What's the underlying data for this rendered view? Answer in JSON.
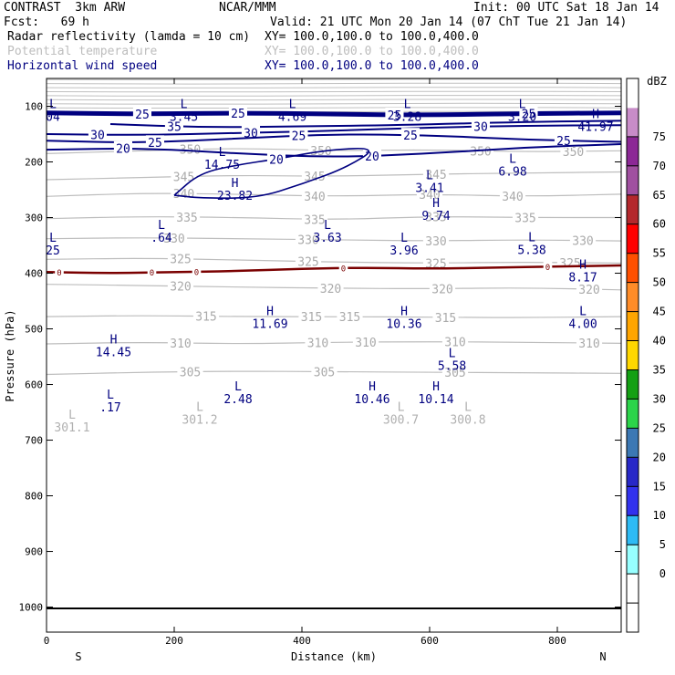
{
  "header": {
    "model": "CONTRAST  3km ARW",
    "institution": "NCAR/MMM",
    "init": "Init: 00 UTC Sat 18 Jan 14",
    "fcst": "Fcst:   69 h",
    "valid": "Valid: 21 UTC Mon 20 Jan 14 (07 ChT Tue 21 Jan 14)",
    "fields": [
      {
        "name": "Radar reflectivity (lamda = 10 cm)",
        "xy": "XY= 100.0,100.0 to 100.0,400.0",
        "color": "#000000"
      },
      {
        "name": "Potential temperature",
        "xy": "XY= 100.0,100.0 to 100.0,400.0",
        "color": "#bdbdbd"
      },
      {
        "name": "Horizontal wind speed",
        "xy": "XY= 100.0,100.0 to 100.0,400.0",
        "color": "#000080"
      }
    ]
  },
  "chart_data": {
    "type": "contour",
    "xlabel": "Distance (km)",
    "ylabel": "Pressure (hPa)",
    "xlim": [
      0,
      900
    ],
    "ylim": [
      50,
      1045
    ],
    "x_ticks": [
      0,
      200,
      400,
      600,
      800
    ],
    "y_ticks": [
      100,
      200,
      300,
      400,
      500,
      600,
      700,
      800,
      900,
      1000
    ],
    "x_end_labels": {
      "left": "S",
      "right": "N"
    },
    "theta_contours": [
      {
        "label": "350",
        "points": [
          [
            0,
            185
          ],
          [
            150,
            180
          ],
          [
            300,
            175
          ],
          [
            450,
            180
          ],
          [
            600,
            178
          ],
          [
            750,
            182
          ],
          [
            900,
            180
          ]
        ],
        "label_x": [
          225,
          430,
          680,
          825
        ]
      },
      {
        "label": "345",
        "points": [
          [
            0,
            232
          ],
          [
            150,
            228
          ],
          [
            300,
            224
          ],
          [
            450,
            226
          ],
          [
            600,
            222
          ],
          [
            750,
            220
          ],
          [
            900,
            218
          ]
        ],
        "label_x": [
          215,
          420,
          610
        ]
      },
      {
        "label": "340",
        "points": [
          [
            0,
            262
          ],
          [
            150,
            256
          ],
          [
            300,
            258
          ],
          [
            450,
            262
          ],
          [
            600,
            258
          ],
          [
            750,
            262
          ],
          [
            900,
            258
          ]
        ],
        "label_x": [
          215,
          420,
          600,
          730
        ]
      },
      {
        "label": "335",
        "points": [
          [
            0,
            302
          ],
          [
            150,
            298
          ],
          [
            300,
            300
          ],
          [
            450,
            304
          ],
          [
            600,
            298
          ],
          [
            750,
            300
          ],
          [
            900,
            300
          ]
        ],
        "label_x": [
          220,
          420,
          610,
          750
        ]
      },
      {
        "label": "330",
        "points": [
          [
            0,
            338
          ],
          [
            150,
            336
          ],
          [
            300,
            338
          ],
          [
            450,
            340
          ],
          [
            600,
            342
          ],
          [
            750,
            340
          ],
          [
            900,
            342
          ]
        ],
        "label_x": [
          200,
          410,
          610,
          840
        ]
      },
      {
        "label": "325",
        "points": [
          [
            0,
            375
          ],
          [
            150,
            373
          ],
          [
            300,
            376
          ],
          [
            450,
            380
          ],
          [
            600,
            382
          ],
          [
            750,
            380
          ],
          [
            900,
            382
          ]
        ],
        "label_x": [
          210,
          410,
          610,
          820
        ]
      },
      {
        "label": "320",
        "points": [
          [
            0,
            420
          ],
          [
            150,
            422
          ],
          [
            300,
            425
          ],
          [
            450,
            427
          ],
          [
            600,
            428
          ],
          [
            750,
            426
          ],
          [
            900,
            430
          ]
        ],
        "label_x": [
          210,
          445,
          620,
          850
        ]
      },
      {
        "label": "315",
        "points": [
          [
            0,
            478
          ],
          [
            150,
            476
          ],
          [
            300,
            478
          ],
          [
            450,
            478
          ],
          [
            600,
            479
          ],
          [
            750,
            480
          ],
          [
            900,
            478
          ]
        ],
        "label_x": [
          250,
          415,
          475,
          625
        ]
      },
      {
        "label": "310",
        "points": [
          [
            0,
            527
          ],
          [
            150,
            524
          ],
          [
            300,
            527
          ],
          [
            450,
            524
          ],
          [
            600,
            523
          ],
          [
            750,
            524
          ],
          [
            900,
            526
          ]
        ],
        "label_x": [
          210,
          425,
          500,
          640,
          850
        ]
      },
      {
        "label": "305",
        "points": [
          [
            0,
            582
          ],
          [
            150,
            578
          ],
          [
            300,
            576
          ],
          [
            450,
            577
          ],
          [
            600,
            578
          ],
          [
            750,
            579
          ],
          [
            900,
            580
          ]
        ],
        "label_x": [
          225,
          435,
          640
        ]
      }
    ],
    "wind_contours": [
      {
        "label": "25",
        "points": [
          [
            0,
            112
          ],
          [
            150,
            114
          ],
          [
            300,
            112
          ],
          [
            450,
            114
          ],
          [
            600,
            116
          ],
          [
            750,
            113
          ],
          [
            900,
            112
          ]
        ],
        "label_x": [
          150,
          300,
          545,
          755
        ]
      },
      {
        "label": "35",
        "points": [
          [
            100,
            132
          ],
          [
            250,
            138
          ],
          [
            400,
            136
          ],
          [
            550,
            134
          ],
          [
            750,
            128
          ],
          [
            900,
            126
          ]
        ],
        "label_x": [
          200
        ]
      },
      {
        "label": "30",
        "points": [
          [
            0,
            150
          ],
          [
            150,
            152
          ],
          [
            300,
            148
          ],
          [
            450,
            144
          ],
          [
            600,
            138
          ],
          [
            750,
            135
          ],
          [
            900,
            134
          ]
        ],
        "label_x": [
          80,
          320,
          680
        ]
      },
      {
        "label": "25",
        "points": [
          [
            0,
            162
          ],
          [
            150,
            166
          ],
          [
            300,
            158
          ],
          [
            450,
            150
          ],
          [
            600,
            152
          ],
          [
            750,
            160
          ],
          [
            900,
            164
          ]
        ],
        "label_x": [
          170,
          395,
          570,
          810
        ]
      },
      {
        "label": "20",
        "points": [
          [
            0,
            178
          ],
          [
            150,
            175
          ],
          [
            300,
            185
          ],
          [
            450,
            192
          ],
          [
            600,
            185
          ],
          [
            750,
            174
          ],
          [
            900,
            168
          ]
        ],
        "label_x": [
          120,
          510
        ]
      }
    ],
    "wind_cells": [
      {
        "label": "20",
        "points": [
          [
            200,
            260
          ],
          [
            240,
            220
          ],
          [
            300,
            205
          ],
          [
            360,
            195
          ],
          [
            440,
            178
          ],
          [
            520,
            174
          ],
          [
            470,
            210
          ],
          [
            400,
            240
          ],
          [
            330,
            265
          ],
          [
            240,
            265
          ],
          [
            200,
            260
          ]
        ],
        "label_x": [
          360
        ]
      }
    ],
    "top_bands": {
      "count": 9,
      "from": 52,
      "to": 110
    },
    "freezing_level": {
      "label": "0",
      "points": [
        [
          0,
          398
        ],
        [
          100,
          400
        ],
        [
          200,
          398
        ],
        [
          300,
          396
        ],
        [
          400,
          392
        ],
        [
          500,
          390
        ],
        [
          600,
          392
        ],
        [
          700,
          390
        ],
        [
          800,
          388
        ],
        [
          900,
          386
        ]
      ],
      "label_x": [
        20,
        165,
        235,
        465,
        785
      ]
    },
    "extrema": [
      {
        "kind": "L",
        "value": "04",
        "x": 10,
        "y": 110
      },
      {
        "kind": "L",
        "value": "3.45",
        "x": 215,
        "y": 110
      },
      {
        "kind": "L",
        "value": "4.69",
        "x": 385,
        "y": 110
      },
      {
        "kind": "L",
        "value": "3.28",
        "x": 565,
        "y": 110
      },
      {
        "kind": "L",
        "value": "3.20",
        "x": 745,
        "y": 110
      },
      {
        "kind": "H",
        "value": "41.97",
        "x": 860,
        "y": 128
      },
      {
        "kind": "L",
        "value": "14.75",
        "x": 275,
        "y": 196
      },
      {
        "kind": "L",
        "value": "6.98",
        "x": 730,
        "y": 208
      },
      {
        "kind": "L",
        "value": "3.41",
        "x": 600,
        "y": 238
      },
      {
        "kind": "H",
        "value": "23.82",
        "x": 295,
        "y": 252
      },
      {
        "kind": "H",
        "value": "9.74",
        "x": 610,
        "y": 288
      },
      {
        "kind": "L",
        "value": ".64",
        "x": 180,
        "y": 327
      },
      {
        "kind": "L",
        "value": "3.63",
        "x": 440,
        "y": 327
      },
      {
        "kind": "L",
        "value": "3.96",
        "x": 560,
        "y": 350
      },
      {
        "kind": "L",
        "value": "5.38",
        "x": 760,
        "y": 349
      },
      {
        "kind": "L",
        "value": "25",
        "x": 10,
        "y": 350
      },
      {
        "kind": "H",
        "value": "8.17",
        "x": 840,
        "y": 398
      },
      {
        "kind": "H",
        "value": "11.69",
        "x": 350,
        "y": 482
      },
      {
        "kind": "H",
        "value": "10.36",
        "x": 560,
        "y": 482
      },
      {
        "kind": "L",
        "value": "4.00",
        "x": 840,
        "y": 482
      },
      {
        "kind": "H",
        "value": "14.45",
        "x": 105,
        "y": 533
      },
      {
        "kind": "L",
        "value": "5.58",
        "x": 635,
        "y": 557
      },
      {
        "kind": "L",
        "value": "2.48",
        "x": 300,
        "y": 617
      },
      {
        "kind": "H",
        "value": "10.46",
        "x": 510,
        "y": 617
      },
      {
        "kind": "H",
        "value": "10.14",
        "x": 610,
        "y": 617
      },
      {
        "kind": "L",
        "value": ".17",
        "x": 100,
        "y": 632
      },
      {
        "kind": "L",
        "value": "301.2",
        "x": 240,
        "y": 654,
        "grey": true
      },
      {
        "kind": "L",
        "value": "300.7",
        "x": 555,
        "y": 654,
        "grey": true
      },
      {
        "kind": "L",
        "value": "300.8",
        "x": 660,
        "y": 654,
        "grey": true
      },
      {
        "kind": "L",
        "value": "301.1",
        "x": 40,
        "y": 668,
        "grey": true
      }
    ],
    "colorbar": {
      "unit": "dBZ",
      "levels": [
        -5,
        0,
        5,
        10,
        15,
        20,
        25,
        30,
        35,
        40,
        45,
        50,
        55,
        60,
        65,
        70,
        75
      ],
      "colors": [
        "#ffffff",
        "#ffffff",
        "#97ffff",
        "#2ebbf5",
        "#3232ee",
        "#2828c8",
        "#3c78b4",
        "#2cd44a",
        "#14a014",
        "#ffd700",
        "#ffa500",
        "#ff8c28",
        "#ff5000",
        "#ff0000",
        "#b4282d",
        "#a050a0",
        "#8c2896",
        "#c88cc8",
        "#ffffff"
      ]
    }
  }
}
